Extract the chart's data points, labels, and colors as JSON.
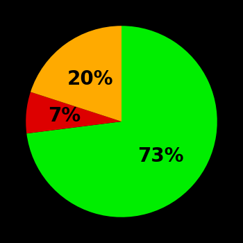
{
  "slices": [
    73,
    7,
    20
  ],
  "colors": [
    "#00ee00",
    "#dd0000",
    "#ffaa00"
  ],
  "labels": [
    "73%",
    "7%",
    "20%"
  ],
  "background_color": "#000000",
  "startangle": 90,
  "label_fontsize": 20,
  "label_fontweight": "bold",
  "label_color": "#000000",
  "label_radii": [
    0.55,
    0.6,
    0.55
  ]
}
